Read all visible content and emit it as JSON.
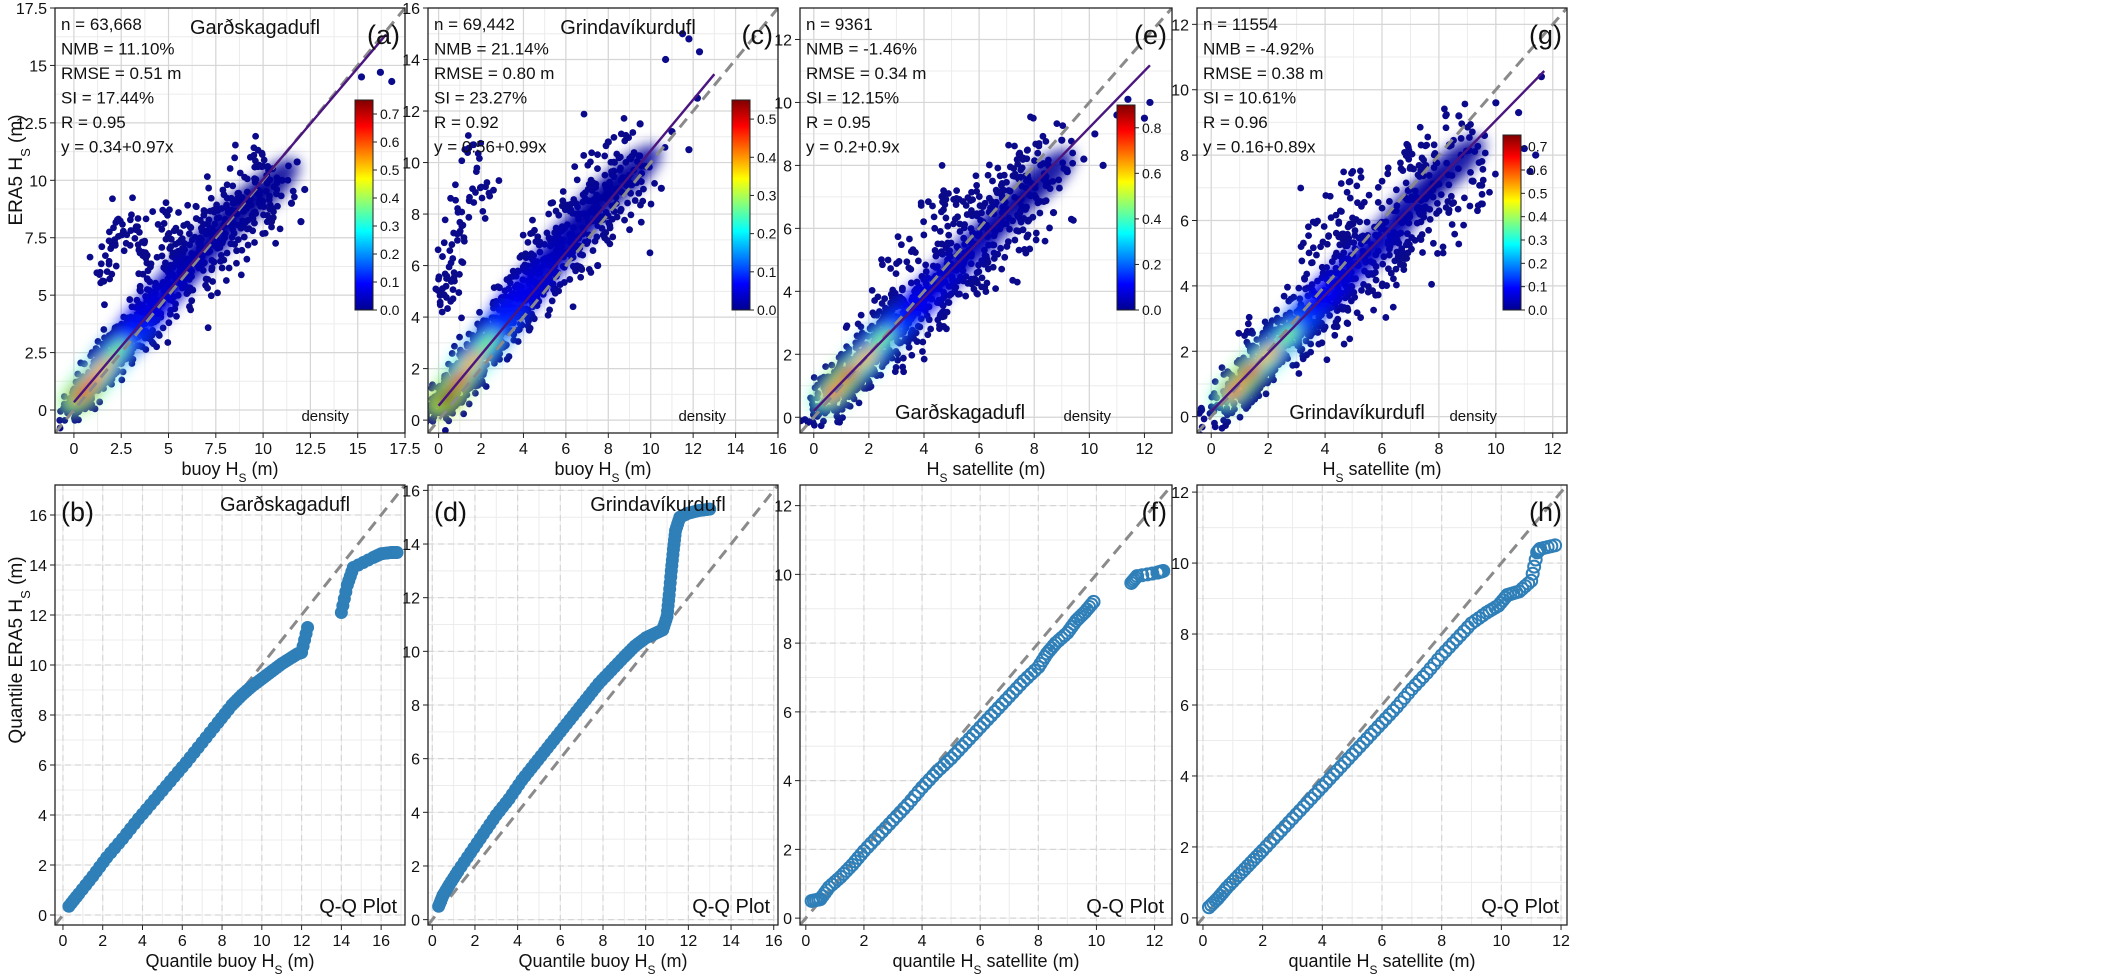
{
  "figure": {
    "shared_ylabels": {
      "top": {
        "prefix": "ERA5 H",
        "sub": "S",
        "suffix": " (m)"
      },
      "bottom": {
        "prefix": "Quantile ERA5 H",
        "sub": "S",
        "suffix": " (m)"
      }
    }
  },
  "chart_data": [
    {
      "id": "a",
      "type": "scatter",
      "panel_label": "(a)",
      "station": "Garðskagadufl",
      "station_pos": "top",
      "xlabel": {
        "prefix": "buoy H",
        "sub": "S",
        "suffix": " (m)"
      },
      "xlim": [
        -1,
        17.5
      ],
      "ylim": [
        -1,
        17.5
      ],
      "xticks": [
        0,
        2.5,
        5,
        7.5,
        10,
        12.5,
        15,
        17.5
      ],
      "xtick_labels": [
        "0",
        "2.5",
        "5",
        "7.5",
        "10",
        "12.5",
        "15",
        "17.5"
      ],
      "yticks": [
        0,
        2.5,
        5,
        7.5,
        10,
        12.5,
        15,
        17.5
      ],
      "ytick_labels": [
        "0",
        "2.5",
        "5",
        "7.5",
        "10",
        "12.5",
        "15",
        "17.5"
      ],
      "stats": [
        "n = 63,668",
        "NMB = 11.10%",
        "RMSE = 0.51 m",
        "SI = 17.44%",
        "R = 0.95",
        "y = 0.34+0.97x"
      ],
      "fit": {
        "intercept": 0.34,
        "slope": 0.97,
        "x_end": 16.5
      },
      "colorbar": {
        "label": "density",
        "max": 0.75,
        "ticks": [
          0.0,
          0.1,
          0.2,
          0.3,
          0.4,
          0.5,
          0.6,
          0.7
        ],
        "tick_labels": [
          "0.0",
          "0.1",
          "0.2",
          "0.3",
          "0.4",
          "0.5",
          "0.6",
          "0.7"
        ]
      },
      "cloud": [
        [
          0.4,
          0.7,
          0.9
        ],
        [
          1.0,
          1.3,
          0.85
        ],
        [
          1.6,
          1.9,
          0.7
        ],
        [
          2.3,
          2.6,
          0.5
        ],
        [
          3.0,
          3.2,
          0.35
        ],
        [
          3.8,
          4.1,
          0.25
        ],
        [
          4.8,
          5.1,
          0.15
        ],
        [
          6.0,
          6.2,
          0.1
        ],
        [
          7.2,
          7.3,
          0.06
        ],
        [
          8.5,
          8.5,
          0.04
        ],
        [
          10.0,
          9.5,
          0.02
        ]
      ],
      "outliers": [
        [
          11.0,
          10.0
        ],
        [
          11.5,
          9.0
        ],
        [
          12.0,
          8.2
        ],
        [
          11.8,
          10.8
        ],
        [
          15.2,
          14.5
        ],
        [
          16.2,
          14.7
        ],
        [
          16.8,
          14.3
        ],
        [
          12.2,
          9.6
        ],
        [
          10.5,
          10.5
        ],
        [
          9.8,
          9.0
        ]
      ],
      "spike": [
        [
          2.0,
          7.2
        ],
        [
          2.5,
          7.8
        ],
        [
          3.0,
          8.0
        ],
        [
          3.5,
          7.3
        ],
        [
          1.5,
          6.0
        ],
        [
          4.6,
          8.3
        ],
        [
          5.2,
          7.5
        ]
      ]
    },
    {
      "id": "c",
      "type": "scatter",
      "panel_label": "(c)",
      "station": "Grindavíkurdufl",
      "station_pos": "top",
      "xlabel": {
        "prefix": "buoy H",
        "sub": "S",
        "suffix": " (m)"
      },
      "xlim": [
        -0.5,
        16
      ],
      "ylim": [
        -0.5,
        16
      ],
      "xticks": [
        0,
        2,
        4,
        6,
        8,
        10,
        12,
        14,
        16
      ],
      "xtick_labels": [
        "0",
        "2",
        "4",
        "6",
        "8",
        "10",
        "12",
        "14",
        "16"
      ],
      "yticks": [
        0,
        2,
        4,
        6,
        8,
        10,
        12,
        14,
        16
      ],
      "ytick_labels": [
        "0",
        "2",
        "4",
        "6",
        "8",
        "10",
        "12",
        "14",
        "16"
      ],
      "stats": [
        "n = 69,442",
        "NMB = 21.14%",
        "RMSE = 0.80 m",
        "SI = 23.27%",
        "R = 0.92",
        "y = 0.56+0.99x"
      ],
      "fit": {
        "intercept": 0.56,
        "slope": 0.99,
        "x_end": 13.0
      },
      "colorbar": {
        "label": "density",
        "max": 0.55,
        "ticks": [
          0.0,
          0.1,
          0.2,
          0.3,
          0.4,
          0.5
        ],
        "tick_labels": [
          "0.0",
          "0.1",
          "0.2",
          "0.3",
          "0.4",
          "0.5"
        ]
      },
      "cloud": [
        [
          0.4,
          0.9,
          1.0
        ],
        [
          1.0,
          1.6,
          0.9
        ],
        [
          1.6,
          2.3,
          0.7
        ],
        [
          2.3,
          3.0,
          0.5
        ],
        [
          3.0,
          3.8,
          0.35
        ],
        [
          3.8,
          4.7,
          0.25
        ],
        [
          4.6,
          5.5,
          0.18
        ],
        [
          5.5,
          6.4,
          0.12
        ],
        [
          6.5,
          7.4,
          0.08
        ],
        [
          7.6,
          8.5,
          0.05
        ],
        [
          8.8,
          9.4,
          0.03
        ]
      ],
      "outliers": [
        [
          11.5,
          15.0
        ],
        [
          11.8,
          14.8
        ],
        [
          12.3,
          14.3
        ],
        [
          10.7,
          14.0
        ],
        [
          11.0,
          11.2
        ],
        [
          11.8,
          10.5
        ],
        [
          12.2,
          12.5
        ],
        [
          9.5,
          11.5
        ],
        [
          8.0,
          10.8
        ],
        [
          10.5,
          9.0
        ],
        [
          7.5,
          6.0
        ]
      ],
      "spike": [
        [
          0.5,
          6.0
        ],
        [
          0.8,
          7.5
        ],
        [
          1.2,
          8.3
        ],
        [
          0.3,
          5.0
        ],
        [
          2.0,
          9.0
        ],
        [
          1.5,
          10.2
        ],
        [
          0.6,
          4.5
        ]
      ]
    },
    {
      "id": "e",
      "type": "scatter",
      "panel_label": "(e)",
      "station": "Garðskagadufl",
      "station_pos": "bottom",
      "xlabel": {
        "prefix": "H",
        "sub": "S",
        "suffix": " satellite (m)"
      },
      "xlim": [
        -0.5,
        13
      ],
      "ylim": [
        -0.5,
        13
      ],
      "xticks": [
        0,
        2,
        4,
        6,
        8,
        10,
        12
      ],
      "xtick_labels": [
        "0",
        "2",
        "4",
        "6",
        "8",
        "10",
        "12"
      ],
      "yticks": [
        0,
        2,
        4,
        6,
        8,
        10,
        12
      ],
      "ytick_labels": [
        "0",
        "2",
        "4",
        "6",
        "8",
        "10",
        "12"
      ],
      "stats": [
        "n = 9361",
        "NMB = -1.46%",
        "RMSE = 0.34 m",
        "SI = 12.15%",
        "R = 0.95",
        "y = 0.2+0.9x"
      ],
      "fit": {
        "intercept": 0.2,
        "slope": 0.9,
        "x_end": 12.2
      },
      "colorbar": {
        "label": "density",
        "max": 0.9,
        "ticks": [
          0.0,
          0.2,
          0.4,
          0.6,
          0.8
        ],
        "tick_labels": [
          "0.0",
          "0.2",
          "0.4",
          "0.6",
          "0.8"
        ]
      },
      "cloud": [
        [
          0.7,
          0.8,
          0.8
        ],
        [
          1.3,
          1.4,
          0.9
        ],
        [
          1.9,
          1.9,
          0.7
        ],
        [
          2.5,
          2.5,
          0.5
        ],
        [
          3.2,
          3.1,
          0.35
        ],
        [
          4.0,
          3.8,
          0.22
        ],
        [
          4.9,
          4.6,
          0.14
        ],
        [
          5.9,
          5.5,
          0.09
        ],
        [
          7.0,
          6.5,
          0.05
        ],
        [
          8.2,
          7.5,
          0.03
        ]
      ],
      "outliers": [
        [
          11.4,
          10.1
        ],
        [
          12.2,
          10.0
        ],
        [
          11.0,
          9.6
        ],
        [
          10.2,
          9.0
        ],
        [
          9.8,
          8.2
        ],
        [
          9.2,
          7.8
        ],
        [
          9.0,
          8.8
        ],
        [
          10.5,
          8.0
        ],
        [
          8.7,
          6.5
        ],
        [
          12.0,
          9.5
        ]
      ],
      "spike": [
        [
          3.0,
          5.0
        ],
        [
          4.5,
          6.5
        ],
        [
          6.0,
          4.2
        ],
        [
          5.0,
          6.8
        ],
        [
          7.5,
          8.0
        ]
      ]
    },
    {
      "id": "g",
      "type": "scatter",
      "panel_label": "(g)",
      "station": "Grindavíkurdufl",
      "station_pos": "bottom",
      "xlabel": {
        "prefix": "H",
        "sub": "S",
        "suffix": " satellite (m)"
      },
      "xlim": [
        -0.5,
        12.5
      ],
      "ylim": [
        -0.5,
        12.5
      ],
      "xticks": [
        0,
        2,
        4,
        6,
        8,
        10,
        12
      ],
      "xtick_labels": [
        "0",
        "2",
        "4",
        "6",
        "8",
        "10",
        "12"
      ],
      "yticks": [
        0,
        2,
        4,
        6,
        8,
        10,
        12
      ],
      "ytick_labels": [
        "0",
        "2",
        "4",
        "6",
        "8",
        "10",
        "12"
      ],
      "stats": [
        "n = 11554",
        "NMB = -4.92%",
        "RMSE = 0.38 m",
        "SI = 10.61%",
        "R = 0.96",
        "y = 0.16+0.89x"
      ],
      "fit": {
        "intercept": 0.16,
        "slope": 0.89,
        "x_end": 11.7
      },
      "colorbar": {
        "label": "density",
        "max": 0.75,
        "ticks": [
          0.0,
          0.1,
          0.2,
          0.3,
          0.4,
          0.5,
          0.6,
          0.7
        ],
        "tick_labels": [
          "0.0",
          "0.1",
          "0.2",
          "0.3",
          "0.4",
          "0.5",
          "0.6",
          "0.7"
        ]
      },
      "cloud": [
        [
          0.8,
          0.8,
          0.8
        ],
        [
          1.4,
          1.4,
          0.9
        ],
        [
          2.0,
          1.9,
          0.7
        ],
        [
          2.7,
          2.5,
          0.5
        ],
        [
          3.4,
          3.2,
          0.35
        ],
        [
          4.2,
          3.9,
          0.22
        ],
        [
          5.1,
          4.7,
          0.14
        ],
        [
          6.1,
          5.5,
          0.09
        ],
        [
          7.2,
          6.6,
          0.05
        ],
        [
          8.4,
          7.6,
          0.03
        ]
      ],
      "outliers": [
        [
          11.0,
          8.2
        ],
        [
          11.4,
          8.0
        ],
        [
          10.8,
          9.3
        ],
        [
          10.0,
          9.6
        ],
        [
          9.6,
          8.6
        ],
        [
          11.6,
          10.4
        ],
        [
          9.2,
          7.2
        ],
        [
          11.2,
          7.5
        ],
        [
          8.7,
          9.2
        ]
      ],
      "spike": [
        [
          3.5,
          5.5
        ],
        [
          5.0,
          6.8
        ],
        [
          6.5,
          4.8
        ],
        [
          7.0,
          8.0
        ],
        [
          4.5,
          6.0
        ]
      ]
    },
    {
      "id": "b",
      "type": "scatter",
      "panel_label": "(b)",
      "station": "Garðskagadufl",
      "station_pos": "top",
      "legend_text": "Q-Q Plot",
      "marker": "filled",
      "xlabel": {
        "prefix": "Quantile buoy H",
        "sub": "S",
        "suffix": " (m)"
      },
      "xlim": [
        -0.4,
        17.2
      ],
      "ylim": [
        -0.4,
        17.2
      ],
      "xticks": [
        0,
        2,
        4,
        6,
        8,
        10,
        12,
        14,
        16
      ],
      "xtick_labels": [
        "0",
        "2",
        "4",
        "6",
        "8",
        "10",
        "12",
        "14",
        "16"
      ],
      "yticks": [
        0,
        2,
        4,
        6,
        8,
        10,
        12,
        14,
        16
      ],
      "ytick_labels": [
        "0",
        "2",
        "4",
        "6",
        "8",
        "10",
        "12",
        "14",
        "16"
      ],
      "x": [
        0.3,
        0.8,
        1.5,
        2.2,
        3.0,
        3.8,
        4.6,
        5.4,
        6.2,
        7.0,
        7.8,
        8.5,
        9.0,
        9.5,
        10.0,
        10.5,
        11.0,
        11.5,
        11.8,
        12.0,
        12.3,
        14.0,
        14.3,
        14.6,
        15.6,
        16.0,
        16.5,
        16.8
      ],
      "y": [
        0.35,
        0.85,
        1.55,
        2.3,
        3.05,
        3.85,
        4.6,
        5.35,
        6.1,
        6.9,
        7.7,
        8.4,
        8.8,
        9.15,
        9.45,
        9.75,
        10.05,
        10.3,
        10.45,
        10.5,
        11.5,
        12.1,
        13.2,
        13.9,
        14.3,
        14.45,
        14.5,
        14.5
      ]
    },
    {
      "id": "d",
      "type": "scatter",
      "panel_label": "(d)",
      "station": "Grindavíkurdufl",
      "station_pos": "top",
      "legend_text": "Q-Q Plot",
      "marker": "filled",
      "xlabel": {
        "prefix": "Quantile buoy H",
        "sub": "S",
        "suffix": " (m)"
      },
      "xlim": [
        -0.2,
        16.2
      ],
      "ylim": [
        -0.2,
        16.2
      ],
      "xticks": [
        0,
        2,
        4,
        6,
        8,
        10,
        12,
        14,
        16
      ],
      "xtick_labels": [
        "0",
        "2",
        "4",
        "6",
        "8",
        "10",
        "12",
        "14",
        "16"
      ],
      "yticks": [
        0,
        2,
        4,
        6,
        8,
        10,
        12,
        14,
        16
      ],
      "ytick_labels": [
        "0",
        "2",
        "4",
        "6",
        "8",
        "10",
        "12",
        "14",
        "16"
      ],
      "x": [
        0.3,
        0.5,
        0.8,
        1.2,
        1.8,
        2.4,
        3.0,
        3.6,
        4.2,
        4.8,
        5.4,
        6.0,
        6.6,
        7.2,
        7.8,
        8.4,
        9.0,
        9.5,
        10.0,
        10.4,
        10.8,
        11.0,
        11.1,
        11.2,
        11.3,
        11.4,
        11.6,
        12.0,
        12.5,
        13.0
      ],
      "y": [
        0.5,
        0.9,
        1.3,
        1.8,
        2.5,
        3.2,
        3.9,
        4.5,
        5.2,
        5.8,
        6.4,
        7.0,
        7.6,
        8.2,
        8.8,
        9.3,
        9.8,
        10.2,
        10.5,
        10.65,
        10.8,
        11.3,
        12.1,
        13.0,
        13.8,
        14.5,
        15.0,
        15.15,
        15.25,
        15.3
      ]
    },
    {
      "id": "f",
      "type": "scatter",
      "panel_label": "(f)",
      "station": "",
      "station_pos": "top",
      "legend_text": "Q-Q Plot",
      "marker": "open",
      "xlabel": {
        "prefix": "quantile H",
        "sub": "S",
        "suffix": " satellite (m)"
      },
      "xlim": [
        -0.2,
        12.6
      ],
      "ylim": [
        -0.2,
        12.6
      ],
      "xticks": [
        0,
        2,
        4,
        6,
        8,
        10,
        12
      ],
      "xtick_labels": [
        "0",
        "2",
        "4",
        "6",
        "8",
        "10",
        "12"
      ],
      "yticks": [
        0,
        2,
        4,
        6,
        8,
        10,
        12
      ],
      "ytick_labels": [
        "0",
        "2",
        "4",
        "6",
        "8",
        "10",
        "12"
      ],
      "x": [
        0.2,
        0.5,
        0.8,
        1.2,
        1.6,
        2.0,
        2.5,
        3.0,
        3.5,
        4.0,
        4.5,
        5.0,
        5.5,
        6.0,
        6.5,
        7.0,
        7.5,
        8.0,
        8.3,
        8.6,
        9.0,
        9.3,
        9.6,
        9.9,
        11.2,
        11.4,
        12.1,
        12.3
      ],
      "y": [
        0.5,
        0.55,
        0.9,
        1.2,
        1.55,
        1.95,
        2.4,
        2.85,
        3.3,
        3.8,
        4.25,
        4.65,
        5.1,
        5.55,
        6.0,
        6.45,
        6.9,
        7.3,
        7.7,
        8.0,
        8.3,
        8.65,
        8.9,
        9.2,
        9.75,
        9.95,
        10.05,
        10.1
      ]
    },
    {
      "id": "h",
      "type": "scatter",
      "panel_label": "(h)",
      "station": "",
      "station_pos": "top",
      "legend_text": "Q-Q Plot",
      "marker": "open",
      "xlabel": {
        "prefix": "quantile H",
        "sub": "S",
        "suffix": " satellite (m)"
      },
      "xlim": [
        -0.2,
        12.2
      ],
      "ylim": [
        -0.2,
        12.2
      ],
      "xticks": [
        0,
        2,
        4,
        6,
        8,
        10,
        12
      ],
      "xtick_labels": [
        "0",
        "2",
        "4",
        "6",
        "8",
        "10",
        "12"
      ],
      "yticks": [
        0,
        2,
        4,
        6,
        8,
        10,
        12
      ],
      "ytick_labels": [
        "0",
        "2",
        "4",
        "6",
        "8",
        "10",
        "12"
      ],
      "x": [
        0.2,
        0.5,
        0.8,
        1.2,
        1.6,
        2.0,
        2.5,
        3.0,
        3.5,
        4.0,
        4.5,
        5.0,
        5.5,
        6.0,
        6.5,
        7.0,
        7.5,
        8.0,
        8.5,
        9.0,
        9.5,
        9.9,
        10.2,
        10.6,
        11.0,
        11.2,
        11.3,
        11.8
      ],
      "y": [
        0.3,
        0.55,
        0.85,
        1.2,
        1.55,
        1.9,
        2.35,
        2.8,
        3.25,
        3.7,
        4.15,
        4.6,
        5.05,
        5.5,
        5.95,
        6.45,
        6.9,
        7.4,
        7.85,
        8.3,
        8.6,
        8.8,
        9.1,
        9.2,
        9.5,
        10.3,
        10.4,
        10.5
      ]
    }
  ]
}
